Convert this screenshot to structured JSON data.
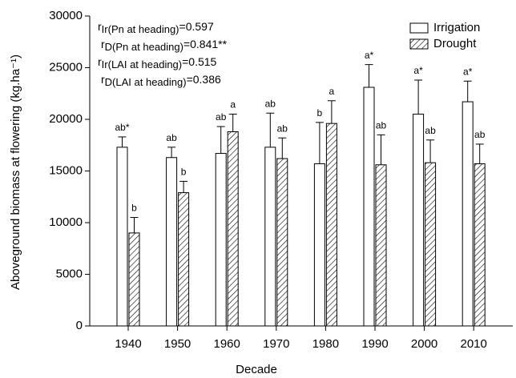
{
  "chart_data": {
    "type": "bar",
    "x_label": "Decade",
    "y_label": "Aboveground biomass at  flowering (kg.ha⁻¹)",
    "categories": [
      "1940",
      "1950",
      "1960",
      "1970",
      "1980",
      "1990",
      "2000",
      "2010"
    ],
    "series": [
      {
        "name": "Irrigation",
        "color": "#ffffff",
        "hatch": false,
        "values": [
          17300,
          16300,
          16700,
          17300,
          15700,
          23100,
          20500,
          21700
        ],
        "errors": [
          1000,
          1000,
          2600,
          3300,
          4000,
          2200,
          3300,
          2000
        ],
        "labels": [
          "ab*",
          "ab",
          "ab",
          "ab",
          "b",
          "a*",
          "a*",
          "a*"
        ]
      },
      {
        "name": "Drought",
        "color": "#ffffff",
        "hatch": true,
        "values": [
          9000,
          12900,
          18800,
          16200,
          19600,
          15600,
          15800,
          15700
        ],
        "errors": [
          1500,
          1100,
          1700,
          2000,
          2200,
          2900,
          2200,
          1900
        ],
        "labels": [
          "b",
          "b",
          "a",
          "ab",
          "a",
          "ab",
          "ab",
          "ab"
        ]
      }
    ],
    "annotations": [
      {
        "symbol": "r",
        "subscript": "Ir(Pn at heading)",
        "text": "=0.597"
      },
      {
        "symbol": "r",
        "subscript": "D(Pn at heading)",
        "text": "=0.841**"
      },
      {
        "symbol": "r",
        "subscript": "Ir(LAI at heading)",
        "text": "=0.515"
      },
      {
        "symbol": "r",
        "subscript": "D(LAI at heading)",
        "text": "=0.386"
      }
    ],
    "ylim": [
      0,
      30000
    ],
    "yticks": [
      0,
      5000,
      10000,
      15000,
      20000,
      25000,
      30000
    ],
    "legend": "top-right"
  }
}
